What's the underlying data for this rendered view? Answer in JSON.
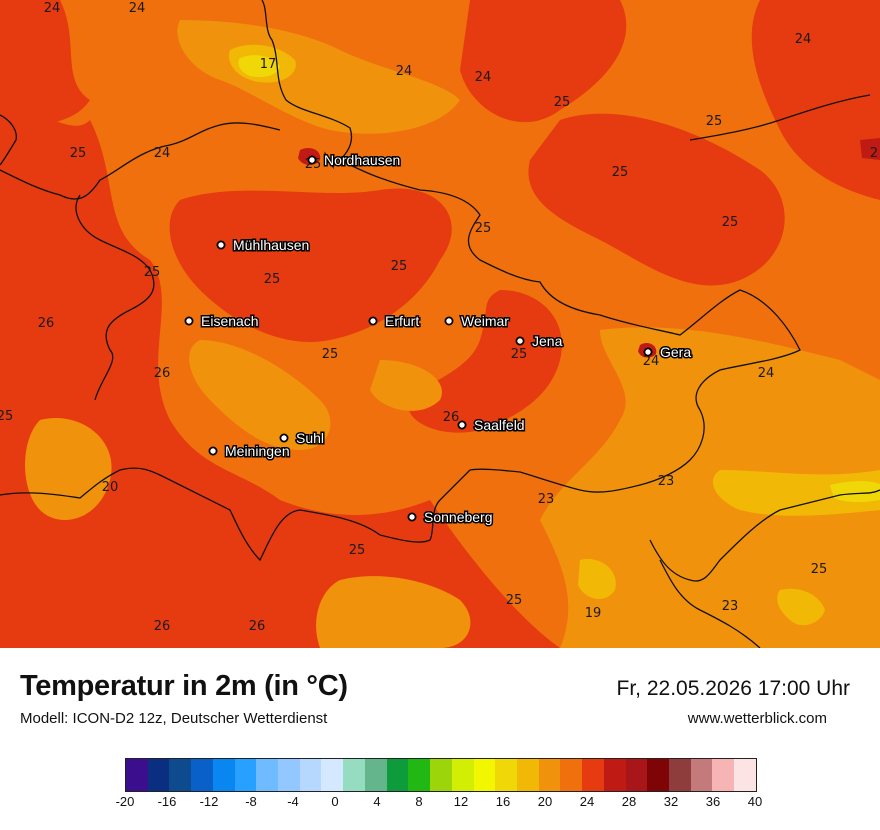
{
  "legend": {
    "title": "Temperatur in 2m (in °C)",
    "model": "Modell: ICON-D2 12z, Deutscher Wetterdienst",
    "datetime": "Fr, 22.05.2026 17:00 Uhr",
    "website": "www.wetterblick.com",
    "scale_colors": [
      "#3a0e8c",
      "#0b2f80",
      "#0e4a8e",
      "#0860c8",
      "#0a86f0",
      "#28a0ff",
      "#70baff",
      "#92c8ff",
      "#b6d8ff",
      "#d4e8ff",
      "#96dcc0",
      "#64b48c",
      "#0e9b3c",
      "#22b814",
      "#9cd60a",
      "#d2ee05",
      "#f2f700",
      "#f0d808",
      "#f2b806",
      "#f1920c",
      "#f0700e",
      "#e63a10",
      "#c01a14",
      "#a8161a",
      "#7e0406",
      "#8e3c3c",
      "#c47a7a",
      "#f6b4b4",
      "#fde4e4"
    ],
    "scale_ticks": [
      "-20",
      "-16",
      "-12",
      "-8",
      "-4",
      "0",
      "4",
      "8",
      "12",
      "16",
      "20",
      "24",
      "28",
      "32",
      "36",
      "40"
    ]
  },
  "cities": [
    {
      "name": "Nordhausen",
      "dot": [
        312,
        160
      ]
    },
    {
      "name": "Mühlhausen",
      "dot": [
        221,
        245
      ]
    },
    {
      "name": "Eisenach",
      "dot": [
        189,
        321
      ]
    },
    {
      "name": "Erfurt",
      "dot": [
        373,
        321
      ]
    },
    {
      "name": "Weimar",
      "dot": [
        449,
        321
      ]
    },
    {
      "name": "Jena",
      "dot": [
        520,
        341
      ]
    },
    {
      "name": "Gera",
      "dot": [
        648,
        352
      ]
    },
    {
      "name": "Saalfeld",
      "dot": [
        462,
        425
      ]
    },
    {
      "name": "Suhl",
      "dot": [
        284,
        438
      ]
    },
    {
      "name": "Meiningen",
      "dot": [
        213,
        451
      ]
    },
    {
      "name": "Sonneberg",
      "dot": [
        412,
        517
      ]
    }
  ],
  "temperature_values": [
    {
      "t": "24",
      "p": [
        52,
        7
      ]
    },
    {
      "t": "24",
      "p": [
        137,
        7
      ]
    },
    {
      "t": "24",
      "p": [
        803,
        38
      ]
    },
    {
      "t": "17",
      "p": [
        268,
        63
      ]
    },
    {
      "t": "24",
      "p": [
        404,
        70
      ]
    },
    {
      "t": "24",
      "p": [
        483,
        76
      ]
    },
    {
      "t": "25",
      "p": [
        562,
        101
      ]
    },
    {
      "t": "25",
      "p": [
        714,
        120
      ]
    },
    {
      "t": "25",
      "p": [
        78,
        152
      ]
    },
    {
      "t": "24",
      "p": [
        162,
        152
      ]
    },
    {
      "t": "2",
      "p": [
        874,
        152
      ]
    },
    {
      "t": "25",
      "p": [
        313,
        163
      ]
    },
    {
      "t": "25",
      "p": [
        620,
        171
      ]
    },
    {
      "t": "25",
      "p": [
        730,
        221
      ]
    },
    {
      "t": "25",
      "p": [
        483,
        227
      ]
    },
    {
      "t": "25",
      "p": [
        152,
        271
      ]
    },
    {
      "t": "25",
      "p": [
        399,
        265
      ]
    },
    {
      "t": "25",
      "p": [
        272,
        278
      ]
    },
    {
      "t": "26",
      "p": [
        46,
        322
      ]
    },
    {
      "t": "25",
      "p": [
        330,
        353
      ]
    },
    {
      "t": "25",
      "p": [
        519,
        353
      ]
    },
    {
      "t": "24",
      "p": [
        651,
        360
      ]
    },
    {
      "t": "26",
      "p": [
        162,
        372
      ]
    },
    {
      "t": "24",
      "p": [
        766,
        372
      ]
    },
    {
      "t": "25",
      "p": [
        5,
        415
      ]
    },
    {
      "t": "26",
      "p": [
        451,
        416
      ]
    },
    {
      "t": "23",
      "p": [
        666,
        480
      ]
    },
    {
      "t": "20",
      "p": [
        110,
        486
      ]
    },
    {
      "t": "23",
      "p": [
        546,
        498
      ]
    },
    {
      "t": "25",
      "p": [
        357,
        549
      ]
    },
    {
      "t": "25",
      "p": [
        819,
        568
      ]
    },
    {
      "t": "25",
      "p": [
        514,
        599
      ]
    },
    {
      "t": "23",
      "p": [
        730,
        605
      ]
    },
    {
      "t": "19",
      "p": [
        593,
        612
      ]
    },
    {
      "t": "26",
      "p": [
        162,
        625
      ]
    },
    {
      "t": "26",
      "p": [
        257,
        625
      ]
    }
  ]
}
